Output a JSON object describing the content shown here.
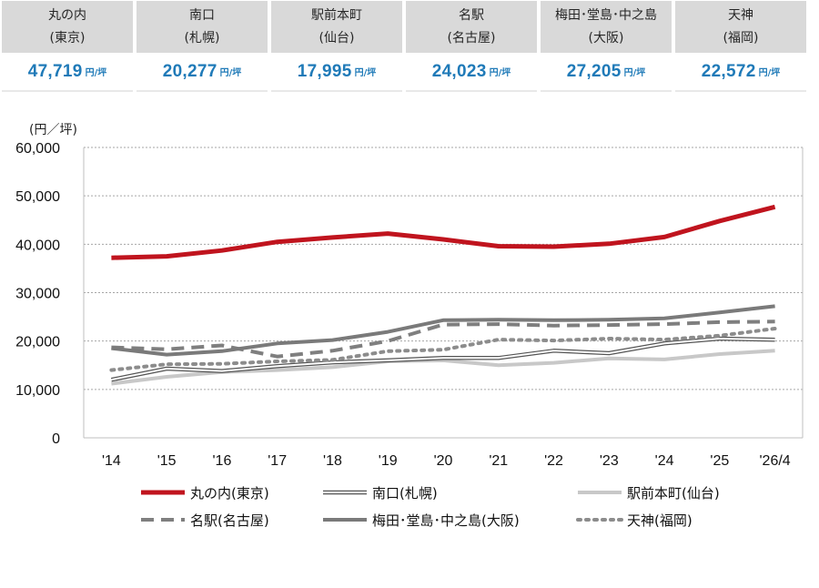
{
  "summary": [
    {
      "area": "丸の内",
      "city": "(東京)",
      "value": "47,719",
      "unit": "円/坪"
    },
    {
      "area": "南口",
      "city": "(札幌)",
      "value": "20,277",
      "unit": "円/坪"
    },
    {
      "area": "駅前本町",
      "city": "(仙台)",
      "value": "17,995",
      "unit": "円/坪"
    },
    {
      "area": "名駅",
      "city": "(名古屋)",
      "value": "24,023",
      "unit": "円/坪"
    },
    {
      "area": "梅田･堂島･中之島",
      "city": "(大阪)",
      "value": "27,205",
      "unit": "円/坪"
    },
    {
      "area": "天神",
      "city": "(福岡)",
      "value": "22,572",
      "unit": "円/坪"
    }
  ],
  "chart_data": {
    "type": "line",
    "ylabel": "(円／坪)",
    "ylim": [
      0,
      60000
    ],
    "yticks": [
      "0",
      "10,000",
      "20,000",
      "30,000",
      "40,000",
      "50,000",
      "60,000"
    ],
    "categories": [
      "'14",
      "'15",
      "'16",
      "'17",
      "'18",
      "'19",
      "'20",
      "'21",
      "'22",
      "'23",
      "'24",
      "'25",
      "'26/4"
    ],
    "grid": true,
    "legend_position": "bottom",
    "series": [
      {
        "name": "丸の内(東京)",
        "color": "#c0141e",
        "style": "solid-thick",
        "values": [
          37200,
          37500,
          38700,
          40500,
          41400,
          42200,
          41000,
          39600,
          39500,
          40100,
          41500,
          44800,
          47719
        ]
      },
      {
        "name": "南口(札幌)",
        "color": "#555555",
        "style": "double",
        "values": [
          12000,
          14300,
          13800,
          14800,
          15600,
          16000,
          16500,
          16500,
          18000,
          17500,
          19500,
          20500,
          20277
        ]
      },
      {
        "name": "駅前本町(仙台)",
        "color": "#c8c8c8",
        "style": "solid",
        "values": [
          11200,
          12600,
          13600,
          14000,
          14600,
          15800,
          16000,
          15000,
          15500,
          16400,
          16200,
          17300,
          17995
        ]
      },
      {
        "name": "名駅(名古屋)",
        "color": "#7f7f7f",
        "style": "dashed",
        "values": [
          18700,
          18300,
          19100,
          16800,
          18000,
          20000,
          23400,
          23500,
          23200,
          23300,
          23500,
          23900,
          24023
        ]
      },
      {
        "name": "梅田･堂島･中之島(大阪)",
        "color": "#7a7a7a",
        "style": "solid",
        "values": [
          18500,
          17200,
          17900,
          19500,
          20200,
          21900,
          24300,
          24400,
          24300,
          24400,
          24700,
          25900,
          27205
        ]
      },
      {
        "name": "天神(福岡)",
        "color": "#8c8c8c",
        "style": "dotted",
        "values": [
          14000,
          15200,
          15300,
          15800,
          16100,
          17900,
          18200,
          20300,
          20100,
          20500,
          20300,
          21100,
          22572
        ]
      }
    ]
  }
}
